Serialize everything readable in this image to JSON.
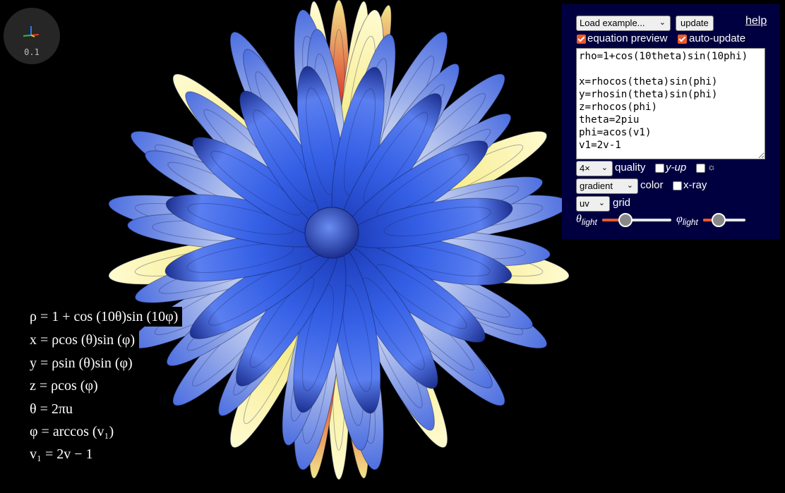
{
  "viewport": {
    "surface_name": "3d-surface"
  },
  "axes_widget": {
    "scale_label": "0.1"
  },
  "panel": {
    "example_select": {
      "value": "Load example..."
    },
    "update_button": "update",
    "help_link": "help",
    "equation_preview": {
      "label": "equation preview",
      "checked": true
    },
    "auto_update": {
      "label": "auto-update",
      "checked": true
    },
    "equation_text": "rho=1+cos(10theta)sin(10phi)\n\nx=rhocos(theta)sin(phi)\ny=rhosin(theta)sin(phi)\nz=rhocos(phi)\ntheta=2piu\nphi=acos(v1)\nv1=2v-1",
    "quality": {
      "value": "4×",
      "label": "quality"
    },
    "y_up": {
      "label": "y-up",
      "checked": false
    },
    "sun": {
      "label": "☼",
      "checked": false
    },
    "color": {
      "value": "gradient",
      "label": "color"
    },
    "xray": {
      "label": "x-ray",
      "checked": false
    },
    "grid": {
      "value": "uv",
      "label": "grid"
    },
    "theta_light": {
      "label_main": "θ",
      "label_sub": "light",
      "value": 0.3
    },
    "phi_light": {
      "label_main": "φ",
      "label_sub": "light",
      "value": 0.3
    }
  },
  "equations": [
    "ρ = 1 + cos (10θ)sin (10φ)",
    "x = ρcos (θ)sin (φ)",
    "y = ρsin (θ)sin (φ)",
    "z = ρcos (φ)",
    "θ = 2πu",
    "φ = arccos (v₁)",
    "v₁ = 2v − 1"
  ],
  "colors": {
    "panel_bg": "#000040",
    "accent": "#ea5a2b",
    "petal_blue": "#2a4fd6",
    "petal_yellow": "#f5eb88",
    "petal_red": "#d8261e"
  }
}
